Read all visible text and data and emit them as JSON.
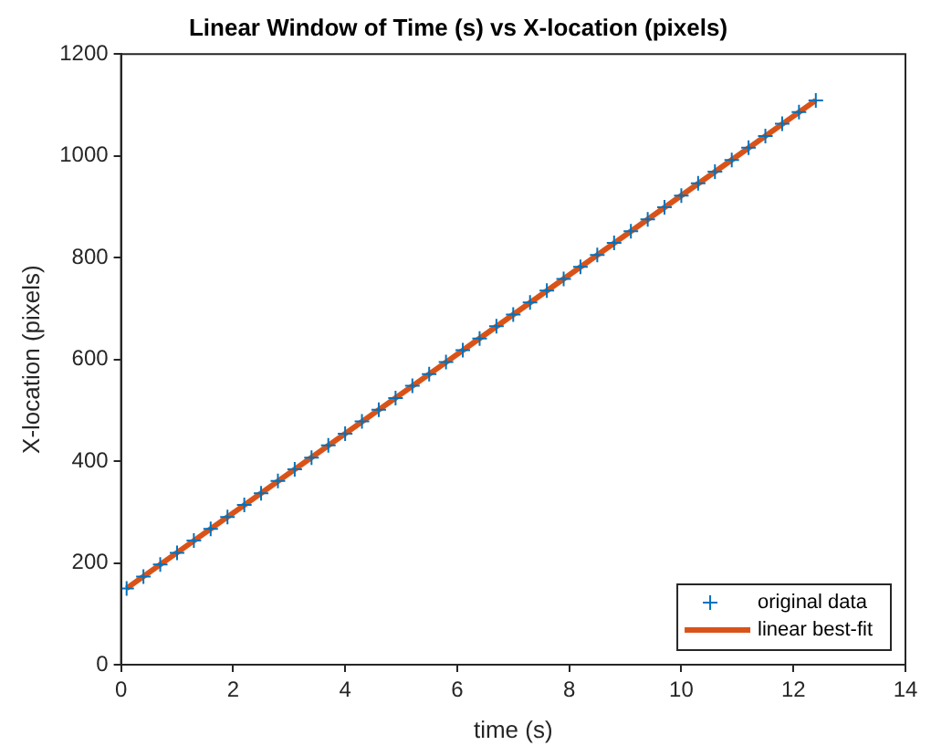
{
  "chart_data": {
    "type": "scatter",
    "title": "Linear Window of Time (s) vs X-location (pixels)",
    "xlabel": "time (s)",
    "ylabel": "X-location (pixels)",
    "xlim": [
      0,
      14
    ],
    "xticks": [
      0,
      2,
      4,
      6,
      8,
      10,
      12,
      14
    ],
    "ylim": [
      0,
      1200
    ],
    "yticks": [
      0,
      200,
      400,
      600,
      800,
      1000,
      1200
    ],
    "grid": false,
    "legend": "bottom right",
    "series": [
      {
        "name": "original data",
        "marker": "cross",
        "color": "#0072bd",
        "x": [
          0.1,
          0.4,
          0.7,
          1.0,
          1.3,
          1.6,
          1.9,
          2.2,
          2.5,
          2.8,
          3.1,
          3.4,
          3.7,
          4.0,
          4.3,
          4.6,
          4.9,
          5.2,
          5.5,
          5.8,
          6.1,
          6.4,
          6.7,
          7.0,
          7.3,
          7.6,
          7.9,
          8.2,
          8.5,
          8.8,
          9.1,
          9.4,
          9.7,
          10.0,
          10.3,
          10.6,
          10.9,
          11.2,
          11.5,
          11.8,
          12.1,
          12.4
        ],
        "values": [
          150,
          173,
          197,
          220,
          244,
          267,
          290,
          314,
          337,
          361,
          384,
          407,
          431,
          454,
          478,
          501,
          524,
          548,
          571,
          595,
          618,
          641,
          665,
          688,
          712,
          735,
          758,
          782,
          805,
          829,
          852,
          875,
          899,
          922,
          946,
          969,
          992,
          1016,
          1039,
          1063,
          1086,
          1109
        ]
      },
      {
        "name": "linear best-fit",
        "type": "line",
        "marker": "none",
        "line_style": "solid",
        "color": "#d95319",
        "x": [
          0.1,
          12.4
        ],
        "values": [
          150,
          1109
        ]
      }
    ]
  }
}
